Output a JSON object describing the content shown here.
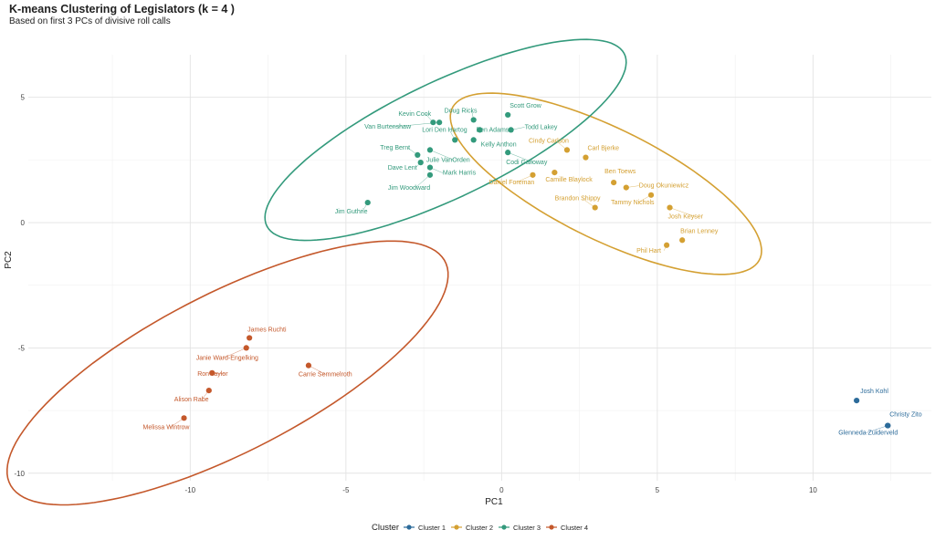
{
  "header": {
    "title": "K-means Clustering of Legislators (k = 4 )",
    "subtitle": "Based on first 3 PCs of divisive roll calls"
  },
  "chart_data": {
    "type": "scatter",
    "title": "K-means Clustering of Legislators (k = 4 )",
    "subtitle": "Based on first 3 PCs of divisive roll calls",
    "xlabel": "PC1",
    "ylabel": "PC2",
    "xlim": [
      -15.2,
      13.8
    ],
    "ylim": [
      -10.3,
      6.7
    ],
    "xticks": [
      -10,
      -5,
      0,
      5,
      10
    ],
    "yticks": [
      -10,
      -5,
      0,
      5
    ],
    "grid": true,
    "legend": {
      "title": "Cluster",
      "position": "bottom"
    },
    "series": [
      {
        "name": "Cluster 1",
        "color": "#2c6b9a",
        "points": [
          {
            "label": "Josh Kohl",
            "x": 11.4,
            "y": -7.1
          },
          {
            "label": "Christy Zito",
            "x": 12.4,
            "y": -8.1
          },
          {
            "label": "Glenneda Zuiderveld",
            "x": 12.4,
            "y": -8.1
          }
        ]
      },
      {
        "name": "Cluster 2",
        "color": "#d4a032",
        "points": [
          {
            "label": "Cindy Carlson",
            "x": 2.1,
            "y": 2.9
          },
          {
            "label": "Carl Bjerke",
            "x": 2.7,
            "y": 2.6
          },
          {
            "label": "Daniel Foreman",
            "x": 1.0,
            "y": 1.9
          },
          {
            "label": "Camille Blaylock",
            "x": 1.7,
            "y": 2.0
          },
          {
            "label": "Ben Toews",
            "x": 3.6,
            "y": 1.6
          },
          {
            "label": "Doug Okuniewicz",
            "x": 4.0,
            "y": 1.4
          },
          {
            "label": "Brandon Shippy",
            "x": 3.0,
            "y": 0.6
          },
          {
            "label": "Tammy Nichols",
            "x": 4.8,
            "y": 1.1
          },
          {
            "label": "Josh Keyser",
            "x": 5.4,
            "y": 0.6
          },
          {
            "label": "Brian Lenney",
            "x": 5.8,
            "y": -0.7
          },
          {
            "label": "Phil Hart",
            "x": 5.3,
            "y": -0.9
          }
        ]
      },
      {
        "name": "Cluster 3",
        "color": "#339a7c",
        "points": [
          {
            "label": "Doug Ricks",
            "x": -0.9,
            "y": 4.1
          },
          {
            "label": "Scott Grow",
            "x": 0.2,
            "y": 4.3
          },
          {
            "label": "Kevin Cook",
            "x": -2.2,
            "y": 4.0
          },
          {
            "label": "Ben Adams",
            "x": -0.7,
            "y": 3.7
          },
          {
            "label": "Van Burtenshaw",
            "x": -2.0,
            "y": 4.0
          },
          {
            "label": "Todd Lakey",
            "x": 0.3,
            "y": 3.7
          },
          {
            "label": "Lori Den Hartog",
            "x": -1.5,
            "y": 3.3
          },
          {
            "label": "Kelly Anthon",
            "x": -0.9,
            "y": 3.3
          },
          {
            "label": "Treg Bernt",
            "x": -2.7,
            "y": 2.7
          },
          {
            "label": "Julie VanOrden",
            "x": -2.3,
            "y": 2.9
          },
          {
            "label": "Codi Galloway",
            "x": 0.2,
            "y": 2.8
          },
          {
            "label": "Dave Lent",
            "x": -2.6,
            "y": 2.4
          },
          {
            "label": "Mark Harris",
            "x": -2.3,
            "y": 2.2
          },
          {
            "label": "Jim Woodward",
            "x": -2.3,
            "y": 1.9
          },
          {
            "label": "Jim Guthrie",
            "x": -4.3,
            "y": 0.8
          }
        ]
      },
      {
        "name": "Cluster 4",
        "color": "#c4582b",
        "points": [
          {
            "label": "James Ruchti",
            "x": -8.1,
            "y": -4.6
          },
          {
            "label": "Janie Ward-Engelking",
            "x": -8.2,
            "y": -5.0
          },
          {
            "label": "Carrie Semmelroth",
            "x": -6.2,
            "y": -5.7
          },
          {
            "label": "Ron Taylor",
            "x": -9.3,
            "y": -6.0
          },
          {
            "label": "Alison Rabe",
            "x": -9.4,
            "y": -6.7
          },
          {
            "label": "Melissa Wintrow",
            "x": -10.2,
            "y": -7.8
          }
        ]
      }
    ],
    "ellipses": [
      {
        "cluster": "Cluster 2",
        "cx": 3.35,
        "cy": 1.55,
        "rx": 5.8,
        "ry": 2.1,
        "angle_deg": -33
      },
      {
        "cluster": "Cluster 3",
        "cx": -1.8,
        "cy": 3.3,
        "rx": 6.7,
        "ry": 2.2,
        "angle_deg": 32
      },
      {
        "cluster": "Cluster 4",
        "cx": -8.8,
        "cy": -6.0,
        "rx": 8.3,
        "ry": 3.0,
        "angle_deg": 34
      }
    ]
  }
}
